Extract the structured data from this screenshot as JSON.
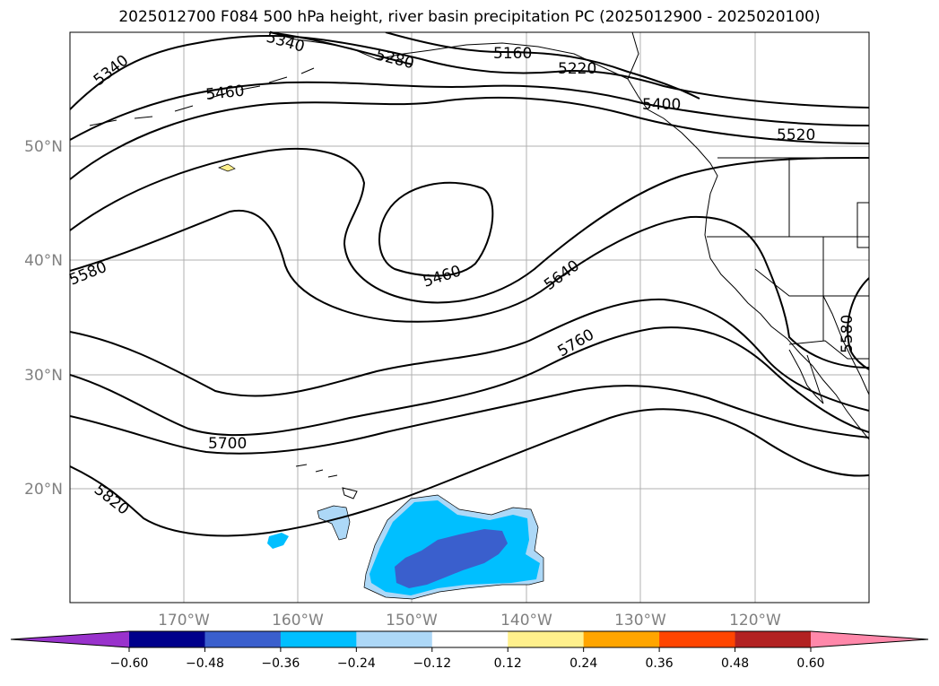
{
  "title": "2025012700 F084 500 hPa height, river basin precipitation PC (2025012900 - 2025020100)",
  "map": {
    "lat_labels": [
      "50°N",
      "40°N",
      "30°N",
      "20°N"
    ],
    "lon_labels": [
      "170°W",
      "160°W",
      "150°W",
      "140°W",
      "130°W",
      "120°W"
    ],
    "contour_labels": [
      "5340",
      "5340",
      "5280",
      "5160",
      "5220",
      "5400",
      "5460",
      "5520",
      "5460",
      "5580",
      "5640",
      "5580",
      "5760",
      "5700",
      "5820"
    ]
  },
  "colorbar": {
    "tick_labels": [
      "−0.60",
      "−0.48",
      "−0.36",
      "−0.24",
      "−0.12",
      "0.12",
      "0.24",
      "0.36",
      "0.48",
      "0.60"
    ],
    "colors": [
      "#9932cc",
      "#00008b",
      "#3a5fcd",
      "#00bfff",
      "#add8f7",
      "#ffffff",
      "#fff08c",
      "#ffa500",
      "#ff4500",
      "#b22222",
      "#ff88aa"
    ]
  },
  "precip_colors": {
    "light": "#add8f7",
    "medium": "#00bfff",
    "dark": "#3a5fcd",
    "positive": "#fff08c"
  }
}
